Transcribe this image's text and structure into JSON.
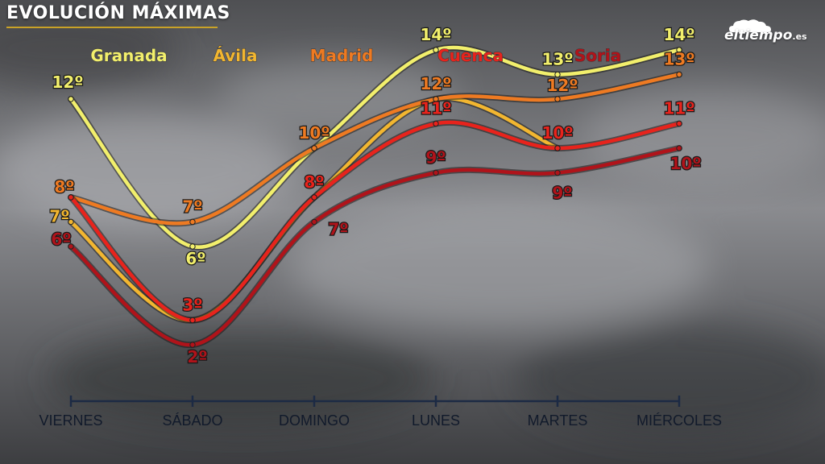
{
  "header": {
    "title": "EVOLUCIÓN MÁXIMAS"
  },
  "brand": {
    "name": "eltiempo",
    "tld": ".es"
  },
  "chart_data": {
    "type": "line",
    "title": "EVOLUCIÓN MÁXIMAS",
    "categories": [
      "VIERNES",
      "SÁBADO",
      "DOMINGO",
      "LUNES",
      "MARTES",
      "MIÉRCOLES"
    ],
    "unit": "º",
    "smooth": true,
    "grid": false,
    "legend": "top",
    "series": [
      {
        "name": "Granada",
        "color": "#f2ef6c",
        "values": [
          12,
          6,
          10,
          14,
          13,
          14
        ]
      },
      {
        "name": "Ávila",
        "color": "#f2b630",
        "values": [
          7,
          3,
          8,
          12,
          10,
          null
        ]
      },
      {
        "name": "Madrid",
        "color": "#ee7a22",
        "values": [
          8,
          7,
          10,
          12,
          12,
          13
        ]
      },
      {
        "name": "Cuenca",
        "color": "#e8231c",
        "values": [
          8,
          3,
          8,
          11,
          10,
          11
        ]
      },
      {
        "name": "Soria",
        "color": "#b0131a",
        "values": [
          6,
          2,
          7,
          9,
          9,
          10
        ]
      }
    ],
    "data_labels": [
      {
        "series": "Granada",
        "index": 0,
        "text": "12º"
      },
      {
        "series": "Granada",
        "index": 1,
        "text": "6º"
      },
      {
        "series": "Granada",
        "index": 3,
        "text": "14º"
      },
      {
        "series": "Granada",
        "index": 4,
        "text": "13º"
      },
      {
        "series": "Granada",
        "index": 5,
        "text": "14º"
      },
      {
        "series": "Ávila",
        "index": 0,
        "text": "7º"
      },
      {
        "series": "Madrid",
        "index": 0,
        "text": "8º"
      },
      {
        "series": "Madrid",
        "index": 1,
        "text": "7º"
      },
      {
        "series": "Madrid",
        "index": 2,
        "text": "10º"
      },
      {
        "series": "Madrid",
        "index": 3,
        "text": "12º"
      },
      {
        "series": "Madrid",
        "index": 4,
        "text": "12º"
      },
      {
        "series": "Madrid",
        "index": 5,
        "text": "13º"
      },
      {
        "series": "Cuenca",
        "index": 1,
        "text": "3º"
      },
      {
        "series": "Cuenca",
        "index": 2,
        "text": "8º"
      },
      {
        "series": "Cuenca",
        "index": 3,
        "text": "11º"
      },
      {
        "series": "Cuenca",
        "index": 4,
        "text": "10º"
      },
      {
        "series": "Cuenca",
        "index": 5,
        "text": "11º"
      },
      {
        "series": "Soria",
        "index": 0,
        "text": "6º"
      },
      {
        "series": "Soria",
        "index": 1,
        "text": "2º"
      },
      {
        "series": "Soria",
        "index": 2,
        "text": "7º"
      },
      {
        "series": "Soria",
        "index": 3,
        "text": "9º"
      },
      {
        "series": "Soria",
        "index": 4,
        "text": "9º"
      },
      {
        "series": "Soria",
        "index": 5,
        "text": "10º"
      }
    ]
  }
}
